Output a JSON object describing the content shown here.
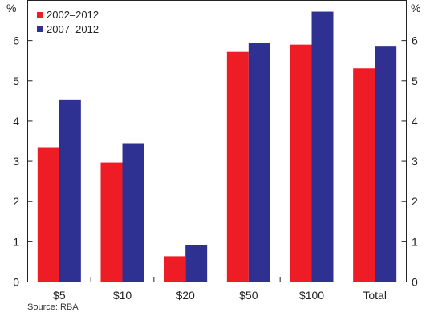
{
  "chart_data": {
    "type": "bar",
    "y_unit_left": "%",
    "y_unit_right": "%",
    "ylim": [
      0,
      7
    ],
    "yticks": [
      "0",
      "1",
      "2",
      "3",
      "4",
      "5",
      "6"
    ],
    "categories": [
      "$5",
      "$10",
      "$20",
      "$50",
      "$100",
      "Total"
    ],
    "series": [
      {
        "name": "2002–2012",
        "color": "#ee1c25",
        "values": [
          3.35,
          2.97,
          0.64,
          5.72,
          5.9,
          5.31
        ]
      },
      {
        "name": "2007–2012",
        "color": "#2e3192",
        "values": [
          4.52,
          3.45,
          0.92,
          5.95,
          6.72,
          5.87
        ]
      }
    ],
    "legend_position": "top-left",
    "grid": false,
    "separator_before": "Total"
  },
  "source": "Source: RBA"
}
